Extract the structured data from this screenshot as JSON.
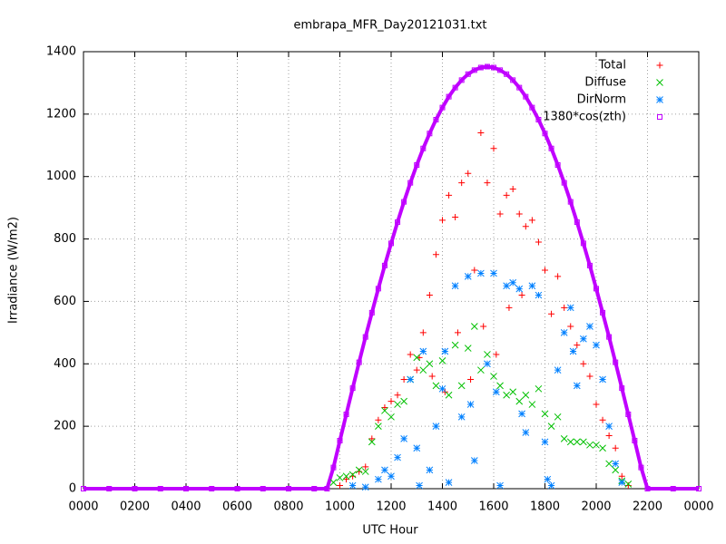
{
  "chart_data": {
    "type": "scatter",
    "title": "embrapa_MFR_Day20121031.txt",
    "x_label": "UTC Hour",
    "y_label": "Irradiance (W/m2)",
    "xlim": [
      0,
      24
    ],
    "ylim": [
      0,
      1400
    ],
    "xticks": [
      {
        "value": 0,
        "label": "0000"
      },
      {
        "value": 2,
        "label": "0200"
      },
      {
        "value": 4,
        "label": "0400"
      },
      {
        "value": 6,
        "label": "0600"
      },
      {
        "value": 8,
        "label": "0800"
      },
      {
        "value": 10,
        "label": "1000"
      },
      {
        "value": 12,
        "label": "1200"
      },
      {
        "value": 14,
        "label": "1400"
      },
      {
        "value": 16,
        "label": "1600"
      },
      {
        "value": 18,
        "label": "1800"
      },
      {
        "value": 20,
        "label": "2000"
      },
      {
        "value": 22,
        "label": "2200"
      },
      {
        "value": 24,
        "label": "0000"
      }
    ],
    "yticks": [
      0,
      200,
      400,
      600,
      800,
      1000,
      1200,
      1400
    ],
    "grid": true,
    "legend": "top-right",
    "series": [
      {
        "name": "Total",
        "color": "#ff0000",
        "marker": "plus",
        "x": [
          10,
          10.25,
          10.5,
          10.75,
          11,
          11.25,
          11.5,
          11.75,
          12,
          12.25,
          12.5,
          12.75,
          13,
          13.1,
          13.25,
          13.5,
          13.6,
          13.75,
          14,
          14.1,
          14.25,
          14.5,
          14.6,
          14.75,
          15,
          15.1,
          15.25,
          15.5,
          15.6,
          15.75,
          16,
          16.1,
          16.25,
          16.5,
          16.6,
          16.75,
          17,
          17.1,
          17.25,
          17.5,
          17.75,
          18,
          18.25,
          18.5,
          18.75,
          19,
          19.25,
          19.5,
          19.75,
          20,
          20.25,
          20.5,
          20.75,
          21,
          21.25
        ],
        "values": [
          10,
          30,
          40,
          55,
          70,
          160,
          220,
          260,
          280,
          300,
          350,
          430,
          380,
          420,
          500,
          620,
          360,
          750,
          860,
          310,
          940,
          870,
          500,
          980,
          1010,
          350,
          700,
          1140,
          520,
          980,
          1090,
          430,
          880,
          940,
          580,
          960,
          880,
          620,
          840,
          860,
          790,
          700,
          560,
          680,
          580,
          520,
          460,
          400,
          360,
          270,
          220,
          170,
          130,
          40,
          10
        ]
      },
      {
        "name": "Diffuse",
        "color": "#00c000",
        "marker": "cross",
        "x": [
          9.75,
          10,
          10.25,
          10.5,
          10.75,
          11,
          11.25,
          11.5,
          11.75,
          12,
          12.25,
          12.5,
          12.75,
          13,
          13.25,
          13.5,
          13.75,
          14,
          14.25,
          14.5,
          14.75,
          15,
          15.25,
          15.5,
          15.75,
          16,
          16.25,
          16.5,
          16.75,
          17,
          17.25,
          17.5,
          17.75,
          18,
          18.25,
          18.5,
          18.75,
          19,
          19.25,
          19.5,
          19.75,
          20,
          20.25,
          20.5,
          20.75,
          21,
          21.25
        ],
        "values": [
          20,
          35,
          40,
          45,
          60,
          55,
          150,
          200,
          250,
          230,
          270,
          280,
          350,
          420,
          380,
          400,
          330,
          410,
          300,
          460,
          330,
          450,
          520,
          380,
          430,
          360,
          330,
          300,
          310,
          280,
          300,
          270,
          320,
          240,
          200,
          230,
          160,
          150,
          150,
          150,
          140,
          140,
          130,
          80,
          60,
          25,
          15
        ]
      },
      {
        "name": "DirNorm",
        "color": "#0080ff",
        "marker": "star",
        "x": [
          10.5,
          11,
          11.5,
          11.75,
          12,
          12.25,
          12.5,
          12.75,
          13,
          13.1,
          13.25,
          13.5,
          13.75,
          14,
          14.1,
          14.25,
          14.5,
          14.75,
          15,
          15.1,
          15.25,
          15.5,
          15.75,
          16,
          16.1,
          16.25,
          16.5,
          16.75,
          17,
          17.1,
          17.25,
          17.5,
          17.75,
          18,
          18.1,
          18.25,
          18.5,
          18.75,
          19,
          19.1,
          19.25,
          19.5,
          19.75,
          20,
          20.25,
          20.5,
          20.75,
          21
        ],
        "values": [
          10,
          5,
          30,
          60,
          40,
          100,
          160,
          350,
          130,
          10,
          440,
          60,
          200,
          320,
          440,
          20,
          650,
          230,
          680,
          270,
          90,
          690,
          400,
          690,
          310,
          10,
          650,
          660,
          640,
          240,
          180,
          650,
          620,
          150,
          30,
          10,
          380,
          500,
          580,
          440,
          330,
          480,
          520,
          460,
          350,
          200,
          80,
          20
        ]
      },
      {
        "name": "1380*cos(zth)",
        "color": "#c000ff",
        "marker": "square",
        "x": [
          0,
          1,
          2,
          3,
          4,
          5,
          6,
          7,
          8,
          9,
          9.5,
          9.75,
          10,
          10.25,
          10.5,
          10.75,
          11,
          11.25,
          11.5,
          11.75,
          12,
          12.25,
          12.5,
          12.75,
          13,
          13.25,
          13.5,
          13.75,
          14,
          14.25,
          14.5,
          14.75,
          15,
          15.25,
          15.5,
          15.75,
          16,
          16.25,
          16.5,
          16.75,
          17,
          17.25,
          17.5,
          17.75,
          18,
          18.25,
          18.5,
          18.75,
          19,
          19.25,
          19.5,
          19.75,
          20,
          20.25,
          20.5,
          20.75,
          21,
          21.25,
          21.5,
          21.75,
          22,
          23,
          24
        ],
        "values": [
          0,
          0,
          0,
          0,
          0,
          0,
          0,
          0,
          0,
          0,
          0,
          68,
          154,
          238,
          322,
          405,
          486,
          564,
          641,
          715,
          786,
          854,
          919,
          980,
          1037,
          1090,
          1138,
          1182,
          1221,
          1256,
          1285,
          1309,
          1328,
          1341,
          1349,
          1352,
          1349,
          1341,
          1328,
          1309,
          1285,
          1256,
          1221,
          1182,
          1138,
          1090,
          1037,
          980,
          919,
          854,
          786,
          715,
          641,
          564,
          486,
          405,
          322,
          238,
          154,
          68,
          0,
          0,
          0
        ]
      }
    ]
  }
}
